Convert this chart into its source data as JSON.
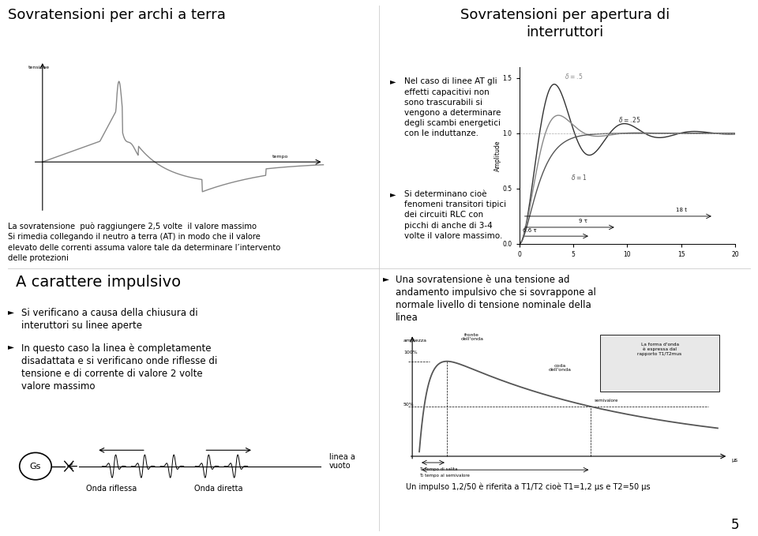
{
  "bg_color": "#ffffff",
  "title1": "Sovratensioni per archi a terra",
  "title2": "Sovratensioni per apertura di\ninterruttori",
  "title3": "A carattere impulsivo",
  "text_left1_line1": "La sovratensione  può raggiungere 2,5 volte  il valore massimo",
  "text_left1_line2": "Si rimedia collegando il neutro a terra (AT) in modo che il valore",
  "text_left1_line3": "elevato delle correnti assuma valore tale da determinare l’intervento",
  "text_left1_line4": "delle protezioni",
  "bullet2_1": "Nel caso di linee AT gli\neffetti capacitivi non\nsono trascurabili si\nvengono a determinare\ndegli scambi energetici\ncon le induttanze.",
  "bullet2_2": "Si determinano cioè\nfenomeni transitori tipici\ndei circuiti RLC con\npicchi di anche di 3-4\nvolte il valore massimo.",
  "bullet3_1": "Si verificano a causa della chiusura di\ninteruttori su linee aperte",
  "bullet3_2": "In questo caso la linea è completamente\ndisadattata e si verificano onde riflesse di\ntensione e di corrente di valore 2 volte\nvalore massimo",
  "bullet4": "Una sovratensione è una tensione ad\nandamento impulsivo che si sovrappone al\nnormale livello di tensione nominale della\nlinea",
  "impulse_caption": "Un impulso 1,2/50 è riferita a T1/T2 cioè T1=1,2 μs e T2=50 μs",
  "divider_color": "#cccccc",
  "text_color": "#000000"
}
